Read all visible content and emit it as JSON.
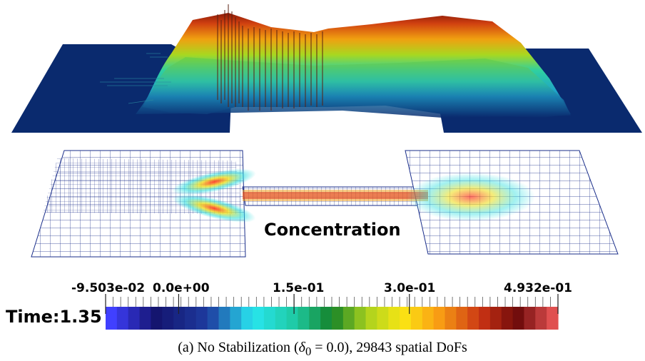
{
  "field_title": "Concentration",
  "time_label": "Time:1.35",
  "colorbar": {
    "tick_labels": [
      "-9.503e-02",
      "0.0e+00",
      "1.5e-01",
      "3.0e-01",
      "4.932e-01"
    ],
    "tick_values": [
      -0.09503,
      0.0,
      0.15,
      0.3,
      0.4932
    ],
    "range": [
      -0.09503,
      0.4932
    ],
    "num_bands": 40,
    "colormap": "jet",
    "low_color": "#4040ff",
    "high_color": "#e05050"
  },
  "caption": {
    "prefix": "(a) No Stabilization (",
    "symbol": "δ",
    "subscript": "0",
    "suffix": " = 0.0), 29843 spatial DoFs"
  },
  "colors": {
    "plane_dark": "#0a2a6e",
    "mesh_line": "#1a2e8a"
  }
}
